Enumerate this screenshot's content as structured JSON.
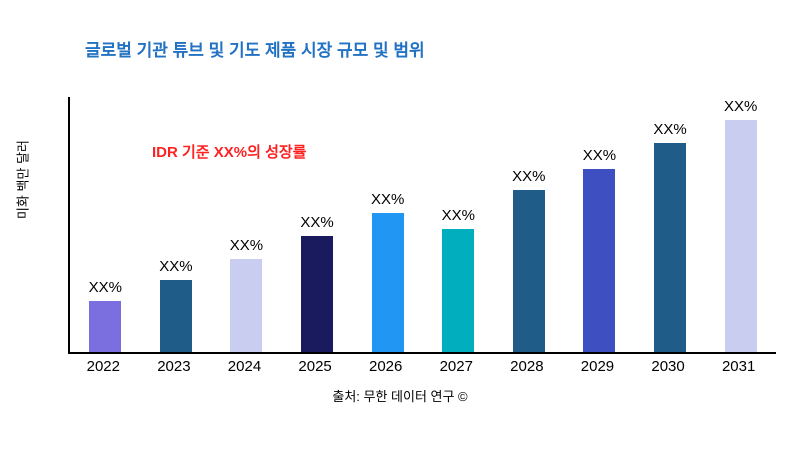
{
  "chart_data": {
    "type": "bar",
    "title": "글로벌 기관 튜브 및 기도 제품 시장 규모 및 범위",
    "ylabel": "미화 백만 달러",
    "xlabel": "",
    "annotation": "IDR 기준 XX%의 성장률",
    "source": "출처: 무한 데이터 연구 ©",
    "categories": [
      "2022",
      "2023",
      "2024",
      "2025",
      "2026",
      "2027",
      "2028",
      "2029",
      "2030",
      "2031"
    ],
    "values": [
      22,
      31,
      40,
      50,
      60,
      53,
      70,
      79,
      90,
      100
    ],
    "bar_labels": [
      "XX%",
      "XX%",
      "XX%",
      "XX%",
      "XX%",
      "XX%",
      "XX%",
      "XX%",
      "XX%",
      "XX%"
    ],
    "colors": [
      "#7B6FE0",
      "#1F5C87",
      "#C9CDF0",
      "#1A1A5E",
      "#2196F3",
      "#00AEBE",
      "#1F5C87",
      "#3E4FC1",
      "#1F5C87",
      "#C9CDF0"
    ],
    "ylim": [
      0,
      100
    ],
    "grid": false,
    "legend": "none",
    "title_color": "#2272C3",
    "annotation_color": "#FF2222",
    "note": "Bars labeled XX% only; values are relative heights estimated from pixels (max bar = 100)"
  }
}
